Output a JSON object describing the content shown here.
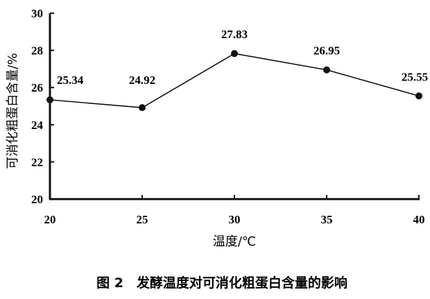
{
  "chart_data": {
    "type": "line",
    "title": "",
    "caption": "图 2　发酵温度对可消化粗蛋白含量的影响",
    "xlabel": "温度/℃",
    "ylabel": "可消化粗蛋白含量/%",
    "x": [
      20,
      25,
      30,
      35,
      40
    ],
    "values": [
      25.34,
      24.92,
      27.83,
      26.95,
      25.55
    ],
    "data_labels": [
      "25.34",
      "24.92",
      "27.83",
      "26.95",
      "25.55"
    ],
    "xticks": [
      "20",
      "25",
      "30",
      "35",
      "40"
    ],
    "yticks": [
      "20",
      "22",
      "24",
      "26",
      "28",
      "30"
    ],
    "xlim": [
      20,
      40
    ],
    "ylim": [
      20,
      30
    ],
    "grid": false,
    "color": "#111111"
  }
}
